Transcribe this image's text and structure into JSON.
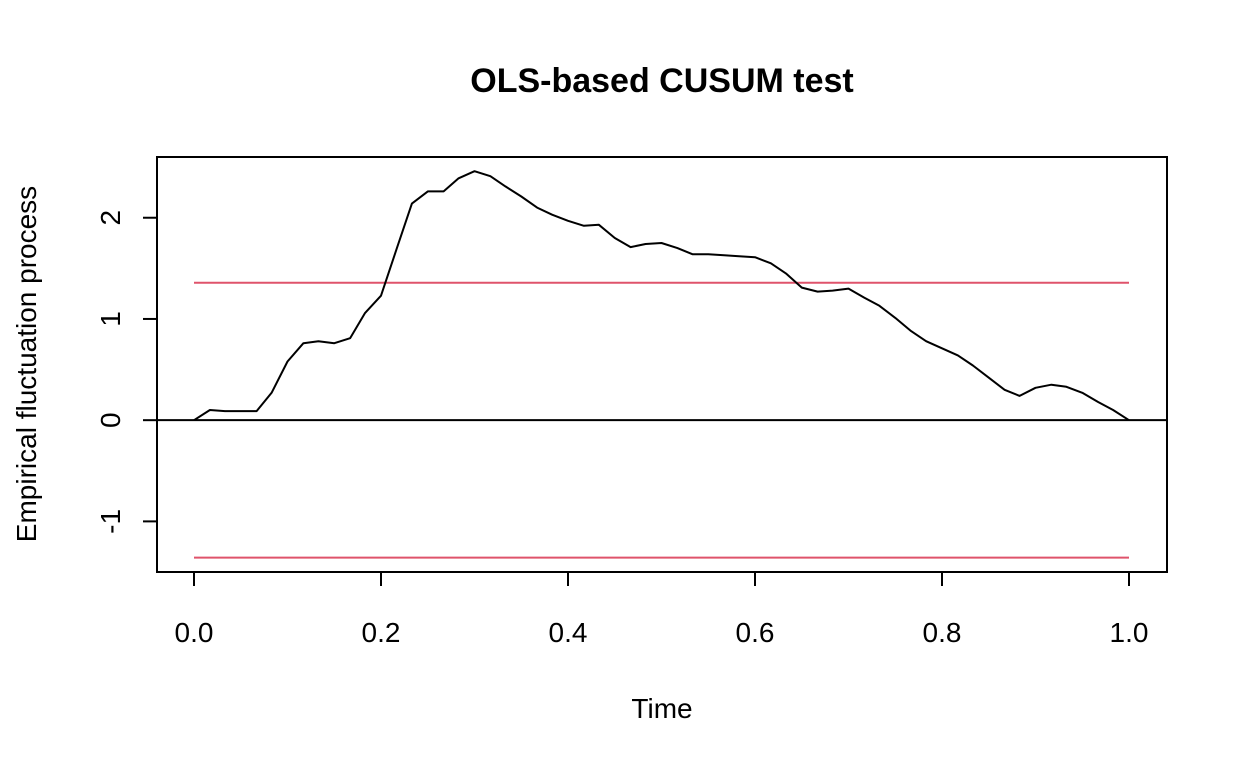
{
  "chart_data": {
    "type": "line",
    "title": "OLS-based CUSUM test",
    "xlabel": "Time",
    "ylabel": "Empirical fluctuation process",
    "xlim": [
      0.0,
      1.0
    ],
    "ylim": [
      -1.5,
      2.6
    ],
    "x_ticks": [
      "0.0",
      "0.2",
      "0.4",
      "0.6",
      "0.8",
      "1.0"
    ],
    "y_ticks": [
      "-1",
      "0",
      "1",
      "2"
    ],
    "grid": false,
    "legend": "none",
    "series": [
      {
        "color": "#000000",
        "x": [
          0.0,
          0.017,
          0.033,
          0.05,
          0.067,
          0.083,
          0.1,
          0.117,
          0.133,
          0.15,
          0.167,
          0.183,
          0.2,
          0.217,
          0.233,
          0.25,
          0.267,
          0.283,
          0.3,
          0.317,
          0.333,
          0.35,
          0.367,
          0.383,
          0.4,
          0.417,
          0.433,
          0.45,
          0.467,
          0.483,
          0.5,
          0.517,
          0.533,
          0.55,
          0.567,
          0.583,
          0.6,
          0.617,
          0.633,
          0.65,
          0.667,
          0.683,
          0.7,
          0.717,
          0.733,
          0.75,
          0.767,
          0.783,
          0.8,
          0.817,
          0.833,
          0.85,
          0.867,
          0.883,
          0.9,
          0.917,
          0.933,
          0.95,
          0.967,
          0.983,
          1.0
        ],
        "values": [
          0.0,
          0.1,
          0.09,
          0.09,
          0.09,
          0.27,
          0.58,
          0.76,
          0.78,
          0.76,
          0.81,
          1.06,
          1.23,
          1.7,
          2.14,
          2.26,
          2.26,
          2.39,
          2.46,
          2.41,
          2.31,
          2.21,
          2.1,
          2.03,
          1.97,
          1.92,
          1.93,
          1.8,
          1.71,
          1.74,
          1.75,
          1.7,
          1.64,
          1.64,
          1.63,
          1.62,
          1.61,
          1.55,
          1.45,
          1.31,
          1.27,
          1.28,
          1.3,
          1.21,
          1.13,
          1.01,
          0.88,
          0.78,
          0.71,
          0.64,
          0.54,
          0.42,
          0.3,
          0.24,
          0.32,
          0.35,
          0.33,
          0.27,
          0.18,
          0.1,
          0.0
        ]
      }
    ],
    "hlines": [
      {
        "y": 1.358,
        "color": "#DF536B"
      },
      {
        "y": -1.358,
        "color": "#DF536B"
      },
      {
        "y": 0,
        "color": "#000000"
      }
    ]
  }
}
